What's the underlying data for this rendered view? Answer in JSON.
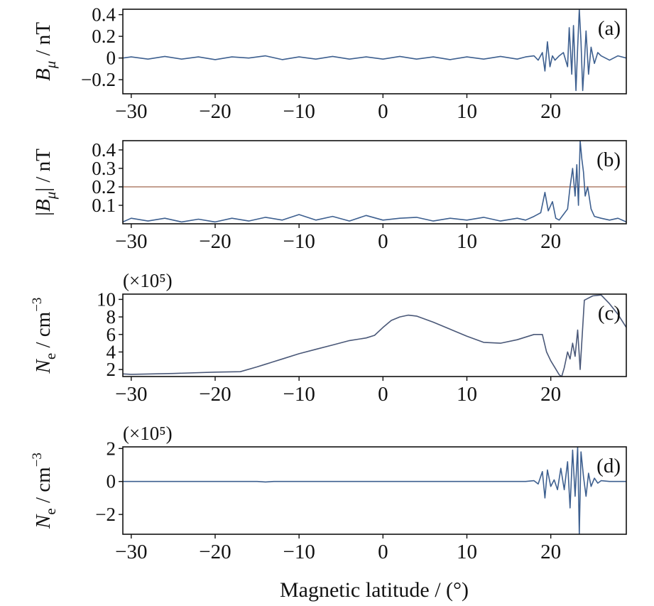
{
  "figure": {
    "xlabel": "Magnetic latitude / (°)"
  },
  "chart_data": [
    {
      "panel": "(a)",
      "type": "line",
      "ylabel_main": "B",
      "ylabel_sub": "μ",
      "ylabel_unit": " / nT",
      "ylabel_abs": false,
      "multiplier": "",
      "xlim": [
        -31,
        29
      ],
      "ylim": [
        -0.33,
        0.45
      ],
      "xticks": [
        -30,
        -20,
        -10,
        0,
        10,
        20
      ],
      "xtick_labels": [
        "−30",
        "−20",
        "−10",
        "0",
        "10",
        "20"
      ],
      "yticks": [
        -0.2,
        0,
        0.2,
        0.4
      ],
      "ytick_labels": [
        "−0.2",
        "0",
        "0.2",
        "0.4"
      ],
      "series": [
        {
          "color": "#3d5f8f",
          "x": [
            -31,
            -30,
            -28,
            -26,
            -24,
            -22,
            -20,
            -18,
            -16,
            -14,
            -12,
            -10,
            -8,
            -6,
            -4,
            -2,
            0,
            2,
            4,
            6,
            8,
            10,
            12,
            14,
            16,
            17,
            18,
            18.5,
            19,
            19.3,
            19.6,
            19.9,
            20.2,
            20.5,
            21,
            21.5,
            22,
            22.2,
            22.5,
            22.7,
            23,
            23.2,
            23.4,
            23.6,
            23.8,
            24,
            24.2,
            24.5,
            24.8,
            25.2,
            25.6,
            26,
            27,
            28,
            29
          ],
          "y": [
            0,
            0.01,
            -0.01,
            0.015,
            -0.01,
            0.01,
            -0.015,
            0.01,
            0,
            0.02,
            -0.015,
            0.01,
            -0.01,
            0.015,
            -0.01,
            0.01,
            -0.01,
            0.015,
            -0.01,
            0.01,
            -0.015,
            0.01,
            -0.01,
            0.015,
            -0.01,
            0.01,
            0.02,
            -0.02,
            0.05,
            -0.12,
            0.15,
            -0.08,
            0.02,
            -0.02,
            0.02,
            0.05,
            -0.08,
            0.28,
            -0.15,
            0.3,
            -0.3,
            0.1,
            0.45,
            0.15,
            -0.3,
            -0.05,
            0.25,
            -0.15,
            0.1,
            -0.05,
            0.05,
            0.02,
            -0.02,
            0.02,
            0
          ]
        }
      ],
      "hline": null
    },
    {
      "panel": "(b)",
      "type": "line",
      "ylabel_main": "B",
      "ylabel_sub": "μ",
      "ylabel_unit": " / nT",
      "ylabel_abs": true,
      "multiplier": "",
      "xlim": [
        -31,
        29
      ],
      "ylim": [
        0,
        0.45
      ],
      "xticks": [
        -30,
        -20,
        -10,
        0,
        10,
        20
      ],
      "xtick_labels": [
        "−30",
        "−20",
        "−10",
        "0",
        "10",
        "20"
      ],
      "yticks": [
        0.1,
        0.2,
        0.3,
        0.4
      ],
      "ytick_labels": [
        "0.1",
        "0.2",
        "0.3",
        "0.4"
      ],
      "series": [
        {
          "color": "#3d5f8f",
          "x": [
            -31,
            -30,
            -28,
            -26,
            -24,
            -22,
            -20,
            -18,
            -16,
            -14,
            -12,
            -10,
            -8,
            -6,
            -4,
            -2,
            0,
            2,
            4,
            6,
            8,
            10,
            12,
            14,
            16,
            17,
            18,
            18.8,
            19.3,
            19.7,
            20.2,
            20.6,
            21,
            21.5,
            22,
            22.3,
            22.6,
            22.9,
            23.1,
            23.3,
            23.5,
            23.7,
            23.9,
            24.1,
            24.4,
            24.8,
            25.2,
            26,
            27,
            28,
            29
          ],
          "y": [
            0.01,
            0.03,
            0.015,
            0.03,
            0.01,
            0.025,
            0.01,
            0.03,
            0.015,
            0.035,
            0.02,
            0.05,
            0.02,
            0.04,
            0.015,
            0.045,
            0.02,
            0.03,
            0.035,
            0.015,
            0.03,
            0.02,
            0.035,
            0.015,
            0.03,
            0.02,
            0.04,
            0.06,
            0.17,
            0.07,
            0.12,
            0.03,
            0.02,
            0.05,
            0.08,
            0.2,
            0.3,
            0.15,
            0.32,
            0.1,
            0.45,
            0.35,
            0.28,
            0.15,
            0.2,
            0.08,
            0.04,
            0.03,
            0.02,
            0.03,
            0.01
          ]
        }
      ],
      "hline": {
        "y": 0.2,
        "color": "#c4a090"
      }
    },
    {
      "panel": "(c)",
      "type": "line",
      "ylabel_main": "N",
      "ylabel_sub": "e",
      "ylabel_unit": " / cm",
      "ylabel_sup": "−3",
      "ylabel_abs": false,
      "multiplier": "(×10⁵)",
      "xlim": [
        -31,
        29
      ],
      "ylim": [
        1.2,
        10.6
      ],
      "xticks": [
        -30,
        -20,
        -10,
        0,
        10,
        20
      ],
      "xtick_labels": [
        "−30",
        "−20",
        "−10",
        "0",
        "10",
        "20"
      ],
      "yticks": [
        2,
        4,
        6,
        8,
        10
      ],
      "ytick_labels": [
        "2",
        "4",
        "6",
        "8",
        "10"
      ],
      "series": [
        {
          "color": "#4a5878",
          "x": [
            -31,
            -30,
            -25,
            -20,
            -17,
            -15,
            -14,
            -12,
            -10,
            -8,
            -6,
            -4,
            -2,
            -1,
            0,
            1,
            2,
            3,
            4,
            6,
            8,
            10,
            12,
            14,
            16,
            18,
            19,
            19.5,
            20,
            20.5,
            21,
            21.3,
            21.6,
            22,
            22.3,
            22.6,
            22.9,
            23.2,
            23.5,
            24,
            25,
            26,
            27,
            28,
            29
          ],
          "y": [
            1.5,
            1.45,
            1.55,
            1.7,
            1.75,
            2.3,
            2.6,
            3.2,
            3.8,
            4.3,
            4.8,
            5.3,
            5.6,
            5.9,
            6.8,
            7.6,
            8.0,
            8.2,
            8.1,
            7.4,
            6.6,
            5.8,
            5.1,
            5.0,
            5.4,
            6.0,
            6.0,
            4.0,
            3.0,
            2.2,
            1.4,
            1.2,
            2.2,
            4.0,
            3.2,
            5.0,
            3.5,
            6.5,
            2.0,
            9.9,
            10.4,
            10.5,
            9.5,
            8.3,
            6.8
          ]
        }
      ],
      "hline": null
    },
    {
      "panel": "(d)",
      "type": "line",
      "ylabel_main": "N",
      "ylabel_sub": "e",
      "ylabel_unit": " / cm",
      "ylabel_sup": "−3",
      "ylabel_abs": false,
      "multiplier": "(×10⁵)",
      "xlim": [
        -31,
        29
      ],
      "ylim": [
        -3.2,
        2.1
      ],
      "xticks": [
        -30,
        -20,
        -10,
        0,
        10,
        20
      ],
      "xtick_labels": [
        "−30",
        "−20",
        "−10",
        "0",
        "10",
        "20"
      ],
      "yticks": [
        -2,
        0,
        2
      ],
      "ytick_labels": [
        "−2",
        "0",
        "2"
      ],
      "series": [
        {
          "color": "#3d5f8f",
          "x": [
            -31,
            -20,
            -15,
            -14,
            -13,
            -10,
            0,
            10,
            17,
            18,
            18.5,
            19,
            19.3,
            19.6,
            20,
            20.4,
            20.8,
            21.2,
            21.6,
            22,
            22.3,
            22.6,
            22.9,
            23.2,
            23.4,
            23.6,
            23.9,
            24.2,
            24.5,
            24.8,
            25.2,
            25.6,
            26,
            27,
            29
          ],
          "y": [
            0,
            0,
            0,
            -0.03,
            0,
            0,
            0,
            0,
            0,
            0.05,
            -0.15,
            0.6,
            -1.0,
            0.7,
            -0.3,
            0.1,
            -0.5,
            0.8,
            -0.5,
            1.2,
            -1.6,
            1.9,
            -0.9,
            2.1,
            -3.2,
            1.8,
            0.3,
            -0.9,
            0.5,
            -0.3,
            0.2,
            -0.1,
            0.05,
            0,
            0
          ]
        }
      ],
      "hline": null
    }
  ]
}
